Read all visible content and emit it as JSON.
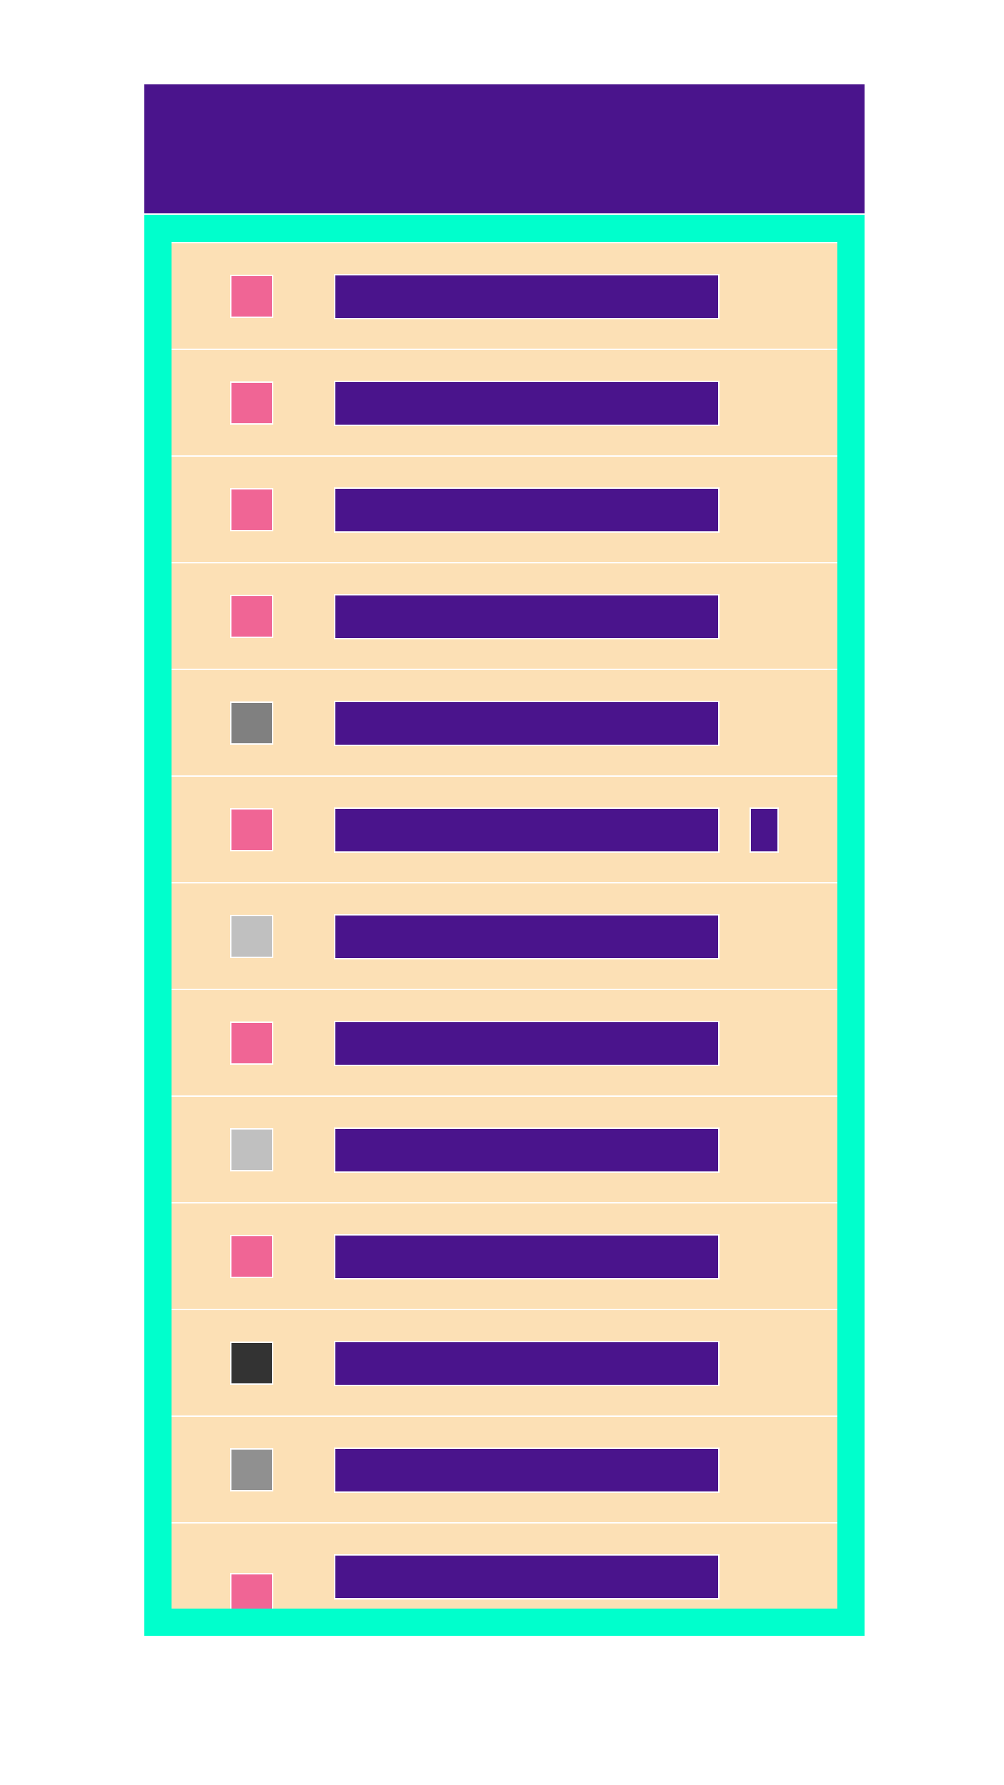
{
  "colors": {
    "header": "#4a148c",
    "frame": "#00ffcc",
    "row": "#fce0b5",
    "bar": "#4a148c",
    "badge": "#4a148c"
  },
  "header": {
    "title": ""
  },
  "list": {
    "items": [
      {
        "swatch_color": "#f06595",
        "label": "",
        "badge": false
      },
      {
        "swatch_color": "#f06595",
        "label": "",
        "badge": false
      },
      {
        "swatch_color": "#f06595",
        "label": "",
        "badge": false
      },
      {
        "swatch_color": "#f06595",
        "label": "",
        "badge": false
      },
      {
        "swatch_color": "#808080",
        "label": "",
        "badge": false
      },
      {
        "swatch_color": "#f06595",
        "label": "",
        "badge": true
      },
      {
        "swatch_color": "#c0c0c0",
        "label": "",
        "badge": false
      },
      {
        "swatch_color": "#f06595",
        "label": "",
        "badge": false
      },
      {
        "swatch_color": "#c0c0c0",
        "label": "",
        "badge": false
      },
      {
        "swatch_color": "#f06595",
        "label": "",
        "badge": false
      },
      {
        "swatch_color": "#333333",
        "label": "",
        "badge": false
      },
      {
        "swatch_color": "#909090",
        "label": "",
        "badge": false
      },
      {
        "swatch_color": "#f06595",
        "label": "",
        "badge": false
      }
    ]
  }
}
